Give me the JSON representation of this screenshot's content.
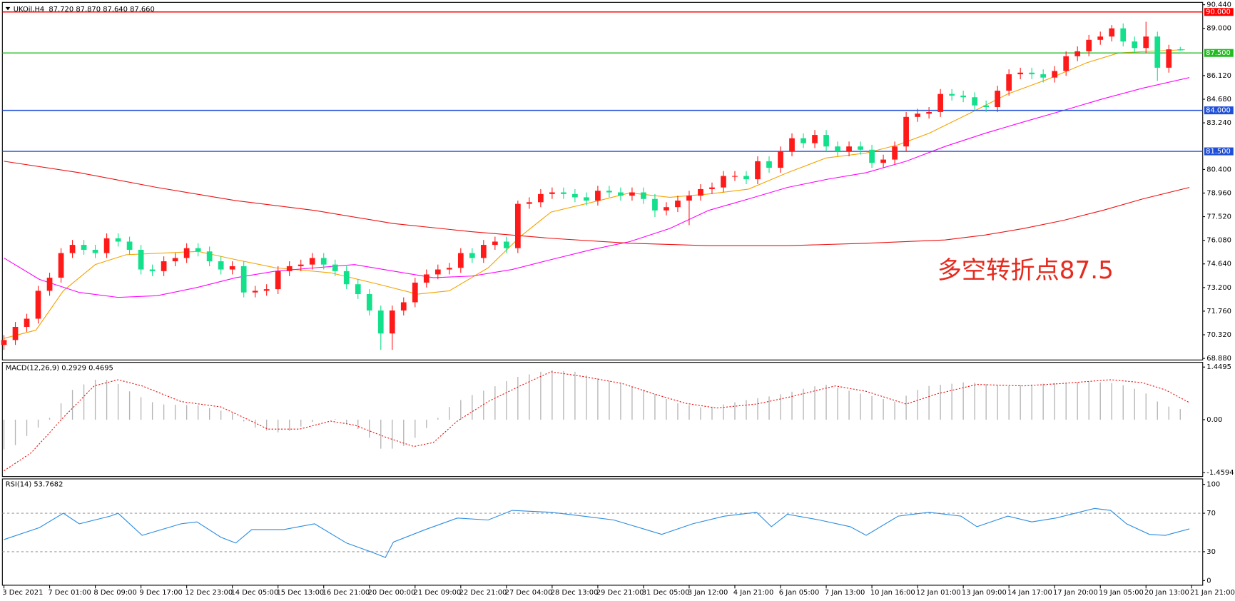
{
  "chart_data": [
    {
      "type": "candlestick",
      "title": "UKOil,H4",
      "subtitle": "87.720 87.870 87.640 87.660",
      "open": [
        69.7,
        70.0,
        70.8,
        71.3,
        73.0,
        73.8,
        75.3,
        75.8,
        75.5,
        75.3,
        76.2,
        76.0,
        75.5,
        74.3,
        74.2,
        74.8,
        75.0,
        75.6,
        75.4,
        74.8,
        74.3,
        74.5,
        72.9,
        73.0,
        73.1,
        74.2,
        74.5,
        74.6,
        75.0,
        74.6,
        74.2,
        73.4,
        72.8,
        71.8,
        70.4,
        71.8,
        72.3,
        73.5,
        74.0,
        74.3,
        74.4,
        75.3,
        75.0,
        75.8,
        76.0,
        75.6,
        78.3,
        78.4,
        78.9,
        79.0,
        78.9,
        78.7,
        78.5,
        79.1,
        79.0,
        78.8,
        79.0,
        78.6,
        77.9,
        78.1,
        78.5,
        78.8,
        79.2,
        79.3,
        80.0,
        80.0,
        79.8,
        80.9,
        80.5,
        81.5,
        82.3,
        82.0,
        82.5,
        81.8,
        81.5,
        81.8,
        81.6,
        80.8,
        81.0,
        81.8,
        83.6,
        83.8,
        83.9,
        85.0,
        84.9,
        84.8,
        84.3,
        84.2,
        85.2,
        86.2,
        86.3,
        86.2,
        86.0,
        86.4,
        87.3,
        87.6,
        88.3,
        88.5,
        89.0,
        88.2,
        87.8,
        88.5,
        86.6,
        87.72
      ],
      "high": [
        70.3,
        71.1,
        71.6,
        73.3,
        74.1,
        75.6,
        76.1,
        76.1,
        75.8,
        76.5,
        76.5,
        76.3,
        75.8,
        74.6,
        75.1,
        75.3,
        75.9,
        75.9,
        75.7,
        75.1,
        74.8,
        74.8,
        73.3,
        73.4,
        74.5,
        74.8,
        74.9,
        75.3,
        75.3,
        74.9,
        74.5,
        73.7,
        73.1,
        72.1,
        72.1,
        72.6,
        73.8,
        74.3,
        74.6,
        74.7,
        75.6,
        75.6,
        76.1,
        76.3,
        76.3,
        78.5,
        78.7,
        79.2,
        79.3,
        79.3,
        79.2,
        79.0,
        79.4,
        79.4,
        79.3,
        79.3,
        79.3,
        78.9,
        78.4,
        78.8,
        79.1,
        79.5,
        79.6,
        80.3,
        80.3,
        80.3,
        81.2,
        81.2,
        81.8,
        82.6,
        82.6,
        82.8,
        82.8,
        82.1,
        82.1,
        82.1,
        81.9,
        81.3,
        82.1,
        83.9,
        84.1,
        84.2,
        85.3,
        85.3,
        85.2,
        85.1,
        84.6,
        85.5,
        86.5,
        86.6,
        86.6,
        86.5,
        86.7,
        87.6,
        87.9,
        88.6,
        88.8,
        89.2,
        89.3,
        88.5,
        89.4,
        88.8,
        88.0,
        87.87
      ],
      "low": [
        69.4,
        69.7,
        70.5,
        71.0,
        72.7,
        73.5,
        75.0,
        75.2,
        75.0,
        75.0,
        75.7,
        75.2,
        74.0,
        73.9,
        73.9,
        74.5,
        74.7,
        75.1,
        74.5,
        74.0,
        74.0,
        72.6,
        72.6,
        72.7,
        72.8,
        73.9,
        74.2,
        74.3,
        74.3,
        73.9,
        73.1,
        72.5,
        71.5,
        69.4,
        69.4,
        71.5,
        72.0,
        73.2,
        73.7,
        74.0,
        74.1,
        74.7,
        74.7,
        75.5,
        75.3,
        75.3,
        78.0,
        78.1,
        78.6,
        78.6,
        78.4,
        78.2,
        78.2,
        78.7,
        78.5,
        78.5,
        78.3,
        77.5,
        77.6,
        77.8,
        77.0,
        78.5,
        78.9,
        79.0,
        79.7,
        79.5,
        79.5,
        80.2,
        80.2,
        81.2,
        81.7,
        81.7,
        81.5,
        81.2,
        81.2,
        81.3,
        80.5,
        80.5,
        80.7,
        81.5,
        83.3,
        83.5,
        83.6,
        84.6,
        84.5,
        84.0,
        83.9,
        83.9,
        84.9,
        85.9,
        85.9,
        85.7,
        85.7,
        86.1,
        87.0,
        87.3,
        88.0,
        88.2,
        87.9,
        87.5,
        87.5,
        85.8,
        86.3,
        87.64
      ],
      "close": [
        70.0,
        70.8,
        71.3,
        73.0,
        73.8,
        75.3,
        75.8,
        75.5,
        75.3,
        76.2,
        76.0,
        75.5,
        74.3,
        74.2,
        74.8,
        75.0,
        75.6,
        75.4,
        74.8,
        74.3,
        74.5,
        72.9,
        73.0,
        73.1,
        74.2,
        74.5,
        74.6,
        75.0,
        74.6,
        74.2,
        73.4,
        72.8,
        71.8,
        70.4,
        71.8,
        72.3,
        73.5,
        74.0,
        74.3,
        74.4,
        75.3,
        75.0,
        75.8,
        76.0,
        75.6,
        78.3,
        78.4,
        78.9,
        79.0,
        78.9,
        78.7,
        78.5,
        79.1,
        79.0,
        78.8,
        79.0,
        78.6,
        77.9,
        78.1,
        78.5,
        78.8,
        79.2,
        79.3,
        80.0,
        80.0,
        79.8,
        80.9,
        80.5,
        81.5,
        82.3,
        82.0,
        82.5,
        81.8,
        81.5,
        81.8,
        81.6,
        80.8,
        81.0,
        81.8,
        83.6,
        83.8,
        83.9,
        85.0,
        84.9,
        84.8,
        84.3,
        84.2,
        85.2,
        86.2,
        86.3,
        86.2,
        86.0,
        86.4,
        87.3,
        87.6,
        88.3,
        88.5,
        89.0,
        88.2,
        87.8,
        88.5,
        86.6,
        87.72,
        87.66
      ],
      "up_color": "#ff1a1a",
      "down_color": "#12e08a",
      "series": [
        {
          "color": "#f5a300",
          "x": [
            0,
            2.8,
            5.2,
            8,
            10.7,
            17,
            20.3,
            23.8,
            28.6,
            32.8,
            36.2,
            39,
            42.4,
            45.2,
            47.9,
            52.1,
            54.8,
            58.3,
            61.7,
            65.2,
            68.6,
            72,
            75.5,
            78.3,
            81,
            84.5,
            87.9,
            91.4,
            94.8,
            97.6,
            100.3,
            103.4
          ],
          "values": [
            70.1,
            70.6,
            73.0,
            74.6,
            75.2,
            75.4,
            74.9,
            74.4,
            74.1,
            73.4,
            72.8,
            73.0,
            74.4,
            76.3,
            77.8,
            78.5,
            78.97,
            78.7,
            78.9,
            79.2,
            80.2,
            81.1,
            81.4,
            81.9,
            82.6,
            83.8,
            85.0,
            85.9,
            86.9,
            87.5,
            87.6,
            87.7
          ]
        },
        {
          "color": "#ff00ff",
          "x": [
            0,
            3.1,
            6.6,
            10,
            13.4,
            16.9,
            20.3,
            23.8,
            27.2,
            30.7,
            34.1,
            37.6,
            41,
            44.5,
            47.9,
            51.4,
            54.8,
            58.3,
            61.7,
            65.2,
            68.6,
            72.1,
            75.5,
            79,
            82.4,
            85.9,
            89.3,
            92.8,
            96.2,
            99.7,
            103.8
          ],
          "values": [
            75.0,
            73.7,
            72.9,
            72.6,
            72.7,
            73.2,
            73.8,
            74.2,
            74.4,
            74.6,
            74.2,
            73.8,
            73.9,
            74.3,
            74.9,
            75.5,
            76.0,
            76.8,
            77.9,
            78.6,
            79.3,
            79.8,
            80.2,
            80.9,
            81.8,
            82.6,
            83.3,
            84.0,
            84.7,
            85.35,
            86.0
          ]
        },
        {
          "color": "#ee1111",
          "x": [
            0,
            6.6,
            13.4,
            20.3,
            27.2,
            34.1,
            41,
            47.9,
            54.8,
            61.7,
            68.6,
            75.5,
            82.4,
            85.9,
            89.3,
            92.8,
            96.2,
            99.7,
            103.8
          ],
          "values": [
            80.9,
            80.2,
            79.3,
            78.5,
            77.9,
            77.1,
            76.6,
            76.2,
            75.9,
            75.75,
            75.75,
            75.9,
            76.1,
            76.4,
            76.8,
            77.3,
            77.9,
            78.6,
            79.3
          ]
        }
      ],
      "levels": [
        {
          "value": 90,
          "label": "90.000",
          "color": "#ff0000"
        },
        {
          "value": 87.5,
          "label": "87.500",
          "color": "#22bb22"
        },
        {
          "value": 84,
          "label": "84.000",
          "color": "#1f4fd8"
        },
        {
          "value": 81.5,
          "label": "81.500",
          "color": "#1f4fd8"
        }
      ],
      "annotation": "多空转折点87.5",
      "ylim": [
        68.88,
        90.44
      ],
      "yticks": [
        {
          "value": 90.44,
          "label": "90.440"
        },
        {
          "value": 89,
          "label": "89.000"
        },
        {
          "value": 86.12,
          "label": "86.120"
        },
        {
          "value": 84.68,
          "label": "84.680"
        },
        {
          "value": 83.24,
          "label": "83.240"
        },
        {
          "value": 80.4,
          "label": "80.400"
        },
        {
          "value": 78.96,
          "label": "78.960"
        },
        {
          "value": 77.52,
          "label": "77.520"
        },
        {
          "value": 76.08,
          "label": "76.080"
        },
        {
          "value": 74.64,
          "label": "74.640"
        },
        {
          "value": 73.2,
          "label": "73.200"
        },
        {
          "value": 71.76,
          "label": "71.760"
        },
        {
          "value": 70.32,
          "label": "70.320"
        },
        {
          "value": 68.88,
          "label": "68.880"
        }
      ],
      "xticks": [
        {
          "value": 0,
          "label": "3 Dec 2021"
        },
        {
          "value": 4,
          "label": "7 Dec 01:00"
        },
        {
          "value": 8,
          "label": "8 Dec 09:00"
        },
        {
          "value": 12,
          "label": "9 Dec 17:00"
        },
        {
          "value": 16,
          "label": "12 Dec 23:00"
        },
        {
          "value": 20,
          "label": "14 Dec 05:00"
        },
        {
          "value": 24,
          "label": "15 Dec 13:00"
        },
        {
          "value": 28,
          "label": "16 Dec 21:00"
        },
        {
          "value": 32,
          "label": "20 Dec 00:00"
        },
        {
          "value": 36,
          "label": "21 Dec 09:00"
        },
        {
          "value": 40,
          "label": "22 Dec 21:00"
        },
        {
          "value": 44,
          "label": "27 Dec 04:00"
        },
        {
          "value": 48,
          "label": "28 Dec 13:00"
        },
        {
          "value": 52,
          "label": "29 Dec 21:00"
        },
        {
          "value": 56,
          "label": "31 Dec 05:00"
        },
        {
          "value": 60,
          "label": "3 Jan 12:00"
        },
        {
          "value": 64,
          "label": "4 Jan 21:00"
        },
        {
          "value": 68,
          "label": "6 Jan 05:00"
        },
        {
          "value": 72,
          "label": "7 Jan 13:00"
        },
        {
          "value": 76,
          "label": "10 Jan 16:00"
        },
        {
          "value": 80,
          "label": "12 Jan 01:00"
        },
        {
          "value": 84,
          "label": "13 Jan 09:00"
        },
        {
          "value": 88,
          "label": "14 Jan 17:00"
        },
        {
          "value": 92,
          "label": "17 Jan 20:00"
        },
        {
          "value": 96,
          "label": "19 Jan 05:00"
        },
        {
          "value": 100,
          "label": "20 Jan 13:00"
        },
        {
          "value": 104,
          "label": "21 Jan 21:00"
        }
      ]
    },
    {
      "type": "macd",
      "title": "MACD(12,26,9) 0.2929 0.4695",
      "values": [
        -0.82,
        -0.7,
        -0.45,
        -0.22,
        0.05,
        0.45,
        0.82,
        0.97,
        1.1,
        1.1,
        0.98,
        0.78,
        0.62,
        0.48,
        0.42,
        0.41,
        0.4,
        0.39,
        0.32,
        0.25,
        0.18,
        -0.05,
        -0.22,
        -0.3,
        -0.35,
        -0.31,
        -0.19,
        -0.06,
        0.0,
        0.02,
        -0.1,
        -0.26,
        -0.5,
        -0.8,
        -0.8,
        -0.73,
        -0.5,
        -0.23,
        0.05,
        0.35,
        0.54,
        0.68,
        0.8,
        0.92,
        1.06,
        1.18,
        1.25,
        1.32,
        1.36,
        1.34,
        1.32,
        1.22,
        1.14,
        1.06,
        0.99,
        0.91,
        0.83,
        0.7,
        0.57,
        0.45,
        0.4,
        0.34,
        0.36,
        0.42,
        0.48,
        0.54,
        0.59,
        0.64,
        0.7,
        0.77,
        0.85,
        0.92,
        0.96,
        0.88,
        0.8,
        0.72,
        0.65,
        0.57,
        0.5,
        0.66,
        0.82,
        0.93,
        0.96,
        0.99,
        1.03,
        1.02,
        0.98,
        0.95,
        0.93,
        0.95,
        0.97,
        0.99,
        1.01,
        1.02,
        1.03,
        1.04,
        1.03,
        1.01,
        0.95,
        0.85,
        0.72,
        0.5,
        0.36,
        0.2929
      ],
      "color": "#b4b4b4",
      "signal": {
        "color": "#ee1111",
        "x": [
          0,
          2.4,
          5.2,
          7.9,
          10,
          12.1,
          15.5,
          19,
          21,
          23.1,
          25.9,
          28.6,
          30.7,
          33.4,
          35.9,
          37.6,
          39.7,
          42.4,
          45.2,
          47.9,
          50.7,
          54.1,
          56.9,
          59.7,
          62.4,
          65.9,
          68.6,
          72.8,
          75.5,
          79,
          81.7,
          85.2,
          89.3,
          92.8,
          96.9,
          99.7,
          101.7,
          103.8
        ],
        "values": [
          -1.41,
          -0.91,
          0.06,
          0.93,
          1.1,
          0.93,
          0.5,
          0.35,
          0.06,
          -0.26,
          -0.26,
          -0.04,
          -0.15,
          -0.48,
          -0.74,
          -0.63,
          -0.04,
          0.5,
          0.93,
          1.32,
          1.19,
          1.0,
          0.71,
          0.45,
          0.32,
          0.43,
          0.61,
          0.93,
          0.78,
          0.43,
          0.71,
          0.97,
          0.93,
          1.0,
          1.1,
          1.02,
          0.82,
          0.4695
        ]
      },
      "ylim": [
        -1.4594,
        1.4495
      ],
      "yticks": [
        -1.4594,
        {
          "value": 0,
          "label": "0.00"
        },
        1.4495
      ]
    },
    {
      "type": "line",
      "title": "RSI(14) 53.7682",
      "x": [
        0,
        3.1,
        5.2,
        6.6,
        9.3,
        10,
        12.1,
        15.5,
        16.9,
        19,
        20.3,
        21.7,
        24.5,
        27.2,
        30,
        32.1,
        33.4,
        34.1,
        36.9,
        39.7,
        42.4,
        44.5,
        47.9,
        50.7,
        53.4,
        56.2,
        57.6,
        60.3,
        63.1,
        65.9,
        67.2,
        68.6,
        71.4,
        74.1,
        75.5,
        78.3,
        81,
        83.8,
        85.2,
        87.9,
        90,
        92.1,
        95.5,
        96.9,
        98.3,
        100.3,
        101.7,
        103.8
      ],
      "values": [
        42.6,
        55,
        70,
        59,
        67,
        70,
        47,
        59,
        61,
        45,
        39,
        53,
        53,
        59,
        39,
        30,
        24,
        40,
        53,
        65,
        63,
        73,
        71,
        67,
        63,
        53,
        48,
        59,
        67,
        71,
        56,
        69,
        63,
        56,
        47,
        67,
        71,
        67,
        56,
        67,
        61,
        65,
        75,
        73,
        59,
        48,
        47,
        53.7682
      ],
      "color": "#2a8ce0",
      "dashed_levels": [
        30,
        70
      ],
      "ylim": [
        0,
        100
      ],
      "yticks": [
        0,
        30,
        70,
        100
      ]
    }
  ]
}
